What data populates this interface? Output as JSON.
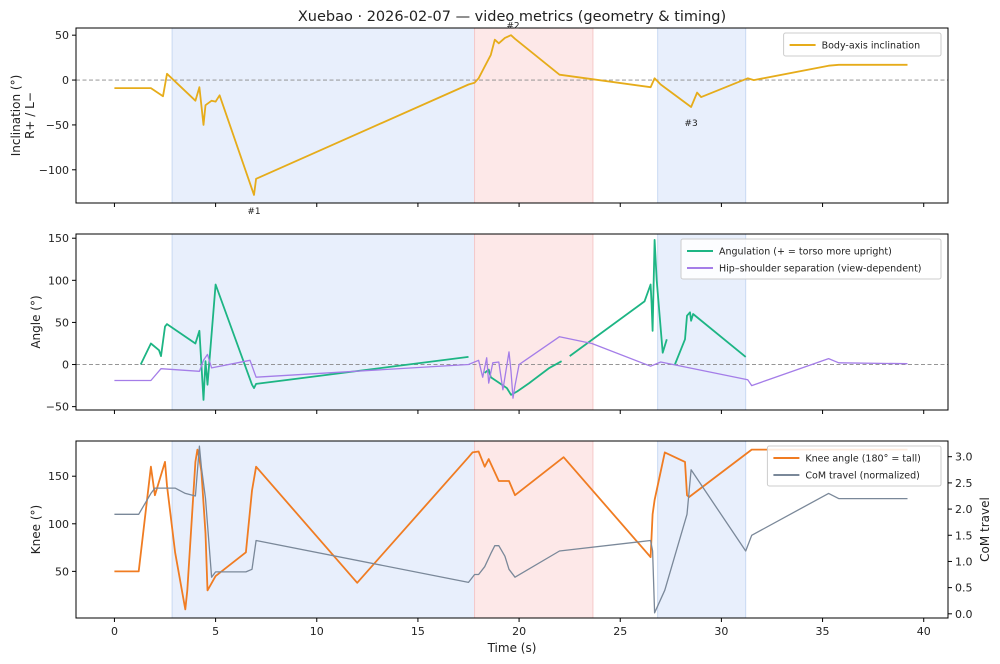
{
  "title": "Xuebao · 2026-02-07 — video metrics (geometry & timing)",
  "xlabel": "Time (s)",
  "colors": {
    "inclination": "#e6ac1a",
    "angulation": "#1db584",
    "separation": "#a47de8",
    "knee": "#f07c22",
    "com": "#7a8899",
    "band_blue": "#e8effc",
    "band_red": "#fde8e8",
    "zero_line": "#888888"
  },
  "chart_data": [
    {
      "type": "line",
      "xlim": [
        -1.9,
        41.2
      ],
      "xticks": [
        0,
        5,
        10,
        15,
        20,
        25,
        30,
        35,
        40
      ],
      "ylim": [
        -137,
        58
      ],
      "yticks": [
        50,
        0,
        -50,
        -100
      ],
      "ylabel_lines": [
        "Inclination (°)",
        "R+ / L−"
      ],
      "zero_line": true,
      "shaded_regions": [
        {
          "from": 2.85,
          "to": 17.8,
          "color": "blue"
        },
        {
          "from": 17.8,
          "to": 23.65,
          "color": "red"
        },
        {
          "from": 26.85,
          "to": 31.2,
          "color": "blue"
        }
      ],
      "legend": {
        "position": "top-right"
      },
      "annotations": [
        {
          "text": "#1",
          "x": 6.9,
          "y": -145
        },
        {
          "text": "#2",
          "x": 19.7,
          "y": 62
        },
        {
          "text": "#3",
          "x": 28.5,
          "y": -47
        }
      ],
      "series": [
        {
          "name": "Body-axis inclination",
          "color_key": "inclination",
          "x": [
            0,
            1.8,
            2.4,
            2.6,
            4.0,
            4.2,
            4.4,
            4.5,
            4.8,
            5.0,
            5.2,
            6.9,
            7.0,
            17.5,
            17.8,
            18.0,
            18.3,
            18.6,
            18.8,
            19.0,
            19.3,
            19.6,
            19.8,
            22.0,
            26.5,
            26.7,
            27.0,
            28.5,
            28.8,
            29.0,
            31.3,
            31.6,
            35.3,
            35.8,
            39.2
          ],
          "y": [
            -9,
            -9,
            -18,
            7,
            -23,
            -8,
            -50,
            -28,
            -23,
            -24,
            -17,
            -128,
            -110,
            -5,
            -3,
            2,
            15,
            28,
            45,
            41,
            47,
            50,
            46,
            6,
            -8,
            2,
            -5,
            -30,
            -14,
            -19,
            2,
            0,
            16,
            17,
            17
          ]
        }
      ]
    },
    {
      "type": "line",
      "xlim": [
        -1.9,
        41.2
      ],
      "xticks": [
        0,
        5,
        10,
        15,
        20,
        25,
        30,
        35,
        40
      ],
      "ylim": [
        -54,
        155
      ],
      "yticks": [
        150,
        100,
        50,
        0,
        -50
      ],
      "ylabel_lines": [
        "Angle (°)"
      ],
      "zero_line": true,
      "shaded_regions": [
        {
          "from": 2.85,
          "to": 17.8,
          "color": "blue"
        },
        {
          "from": 17.8,
          "to": 23.65,
          "color": "red"
        },
        {
          "from": 26.85,
          "to": 31.2,
          "color": "blue"
        }
      ],
      "legend": {
        "position": "top-right"
      },
      "series": [
        {
          "name": "Angulation (+ = torso more upright)",
          "color_key": "angulation",
          "segments": [
            {
              "x": [
                1.3,
                1.8,
                2.2,
                2.3,
                2.5,
                2.6,
                4.0,
                4.2,
                4.3,
                4.4,
                4.5,
                4.6,
                5.0,
                6.8,
                6.9,
                7.0,
                17.5
              ],
              "y": [
                0,
                25,
                17,
                10,
                45,
                48,
                25,
                40,
                0,
                -42,
                4,
                -24,
                95,
                -24,
                -28,
                -23,
                9
              ]
            },
            {
              "x": [
                18.3,
                18.5,
                18.6,
                19.4,
                19.6,
                19.9,
                20.5,
                21.5,
                22.1
              ],
              "y": [
                -10,
                -6,
                -15,
                -28,
                -36,
                -32,
                -22,
                -4,
                4
              ]
            },
            {
              "x": [
                22.5,
                26.2,
                26.5,
                26.55,
                26.6,
                26.7,
                26.8,
                27.1,
                27.3
              ],
              "y": [
                10,
                75,
                95,
                72,
                40,
                148,
                100,
                14,
                30
              ]
            },
            {
              "x": [
                27.7,
                28.2,
                28.3,
                28.45,
                28.5,
                28.6,
                31.2
              ],
              "y": [
                0,
                30,
                58,
                62,
                52,
                60,
                9
              ]
            }
          ]
        },
        {
          "name": "Hip–shoulder separation (view-dependent)",
          "color_key": "separation",
          "segments": [
            {
              "x": [
                0,
                1.8,
                2.3,
                4.2,
                4.4,
                4.6,
                4.8,
                6.7,
                7.0,
                17.5,
                18.0,
                18.2,
                18.4,
                18.5,
                18.7,
                19.0,
                19.2,
                19.5,
                19.6,
                19.7,
                19.8,
                20.0,
                20.3,
                22.0,
                23.6,
                26.5,
                27.0,
                31.3,
                31.5,
                35.3,
                35.8,
                39.2
              ],
              "y": [
                -19,
                -19,
                -5,
                -8,
                5,
                12,
                -4,
                5,
                -15,
                0,
                5,
                -15,
                8,
                -22,
                2,
                3,
                -30,
                15,
                -8,
                -40,
                -25,
                0,
                5,
                33,
                25,
                -2,
                3,
                -18,
                -25,
                7,
                2,
                1
              ]
            }
          ]
        }
      ]
    },
    {
      "type": "line",
      "xlim": [
        -1.9,
        41.2
      ],
      "xticks": [
        0,
        5,
        10,
        15,
        20,
        25,
        30,
        35,
        40
      ],
      "ylim": [
        1,
        187
      ],
      "yticks": [
        150,
        100,
        50
      ],
      "ylabel_lines": [
        "Knee (°)"
      ],
      "y2lim": [
        -0.08,
        3.3
      ],
      "y2ticks": [
        0.0,
        0.5,
        1.0,
        1.5,
        2.0,
        2.5,
        3.0
      ],
      "y2ticklabels": [
        "0.0",
        "0.5",
        "1.0",
        "1.5",
        "2.0",
        "2.5",
        "3.0"
      ],
      "y2label": "CoM travel",
      "shaded_regions": [
        {
          "from": 2.85,
          "to": 17.8,
          "color": "blue"
        },
        {
          "from": 17.8,
          "to": 23.65,
          "color": "red"
        },
        {
          "from": 26.85,
          "to": 31.2,
          "color": "blue"
        }
      ],
      "legend": {
        "position": "top-right"
      },
      "series": [
        {
          "name": "Knee angle (180° = tall)",
          "color_key": "knee",
          "axis": "left",
          "x": [
            0,
            1.2,
            1.8,
            2.0,
            2.5,
            2.6,
            3.0,
            3.5,
            3.6,
            4.0,
            4.1,
            4.2,
            4.3,
            4.5,
            4.6,
            5.0,
            6.5,
            6.8,
            7.0,
            12.0,
            17.5,
            17.7,
            18.0,
            18.3,
            18.5,
            19.0,
            19.5,
            19.8,
            22.2,
            26.5,
            26.6,
            26.7,
            27.2,
            28.2,
            28.3,
            28.4,
            31.5,
            39.2
          ],
          "y": [
            50,
            50,
            160,
            130,
            165,
            140,
            70,
            10,
            30,
            165,
            178,
            168,
            155,
            90,
            30,
            45,
            70,
            135,
            160,
            38,
            170,
            175,
            176,
            160,
            168,
            145,
            145,
            130,
            170,
            65,
            110,
            125,
            175,
            165,
            130,
            128,
            178,
            178
          ]
        },
        {
          "name": "CoM travel (normalized)",
          "color_key": "com",
          "axis": "right",
          "x": [
            0,
            1.2,
            1.8,
            2.0,
            3.0,
            3.5,
            4.0,
            4.2,
            4.3,
            4.5,
            4.8,
            5.0,
            6.5,
            6.8,
            7.0,
            17.5,
            17.8,
            18.0,
            18.3,
            18.6,
            18.8,
            19.0,
            19.3,
            19.5,
            19.8,
            22.0,
            26.5,
            26.6,
            26.7,
            27.2,
            28.3,
            28.5,
            31.2,
            31.5,
            35.3,
            35.8,
            39.2
          ],
          "y": [
            1.9,
            1.9,
            2.3,
            2.4,
            2.4,
            2.3,
            2.25,
            3.2,
            2.8,
            2.2,
            0.7,
            0.8,
            0.8,
            0.85,
            1.4,
            0.6,
            0.75,
            0.75,
            0.9,
            1.15,
            1.3,
            1.3,
            1.1,
            0.85,
            0.7,
            1.2,
            1.4,
            1.2,
            0.02,
            0.45,
            1.9,
            2.75,
            1.2,
            1.5,
            2.3,
            2.2,
            2.2
          ]
        }
      ]
    }
  ]
}
